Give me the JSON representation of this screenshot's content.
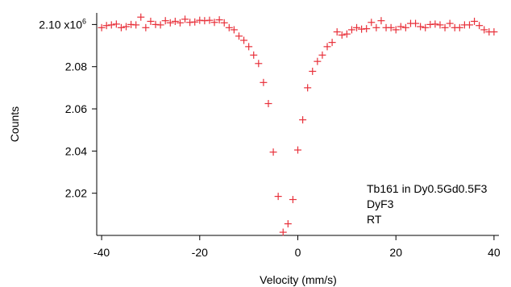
{
  "chart_data": {
    "type": "scatter",
    "title": "",
    "xlabel": "Velocity (mm/s)",
    "ylabel": "Counts",
    "xlim": [
      -41,
      41
    ],
    "ylim": [
      2.0,
      2.1055
    ],
    "x_ticks": [
      -40,
      -20,
      0,
      20,
      40
    ],
    "x_tick_labels": [
      "-40",
      "-20",
      "0",
      "20",
      "40"
    ],
    "y_ticks": [
      2.02,
      2.04,
      2.06,
      2.08,
      2.1
    ],
    "y_tick_labels": [
      "2.02",
      "2.04",
      "2.06",
      "2.08",
      "2.10 x10"
    ],
    "y_multiplier_exponent": "6",
    "grid": false,
    "marker": "+",
    "marker_color": "#e8303a",
    "annotations": [
      "Tb161 in Dy0.5Gd0.5F3",
      "DyF3",
      "RT"
    ],
    "series": [
      {
        "x": [
          -40.0,
          -39.0,
          -38.0,
          -37.0,
          -36.0,
          -35.0,
          -34.0,
          -33.0,
          -32.0,
          -31.0,
          -30.0,
          -29.0,
          -28.0,
          -27.0,
          -26.0,
          -25.0,
          -24.0,
          -23.0,
          -22.0,
          -21.0,
          -20.0,
          -19.0,
          -18.0,
          -17.0,
          -16.0,
          -15.0,
          -14.0,
          -13.0,
          -12.0,
          -11.0,
          -10.0,
          -9.0,
          -8.0,
          -7.0,
          -6.0,
          -5.0,
          -4.0,
          -3.0,
          -2.0,
          -1.0,
          0.0,
          1.0,
          2.0,
          3.0,
          4.0,
          5.0,
          6.0,
          7.0,
          8.0,
          9.0,
          10.0,
          11.0,
          12.0,
          13.0,
          14.0,
          15.0,
          16.0,
          17.0,
          18.0,
          19.0,
          20.0,
          21.0,
          22.0,
          23.0,
          24.0,
          25.0,
          26.0,
          27.0,
          28.0,
          29.0,
          30.0,
          31.0,
          32.0,
          33.0,
          34.0,
          35.0,
          36.0,
          37.0,
          38.0,
          39.0,
          40.0
        ],
        "values": [
          2.0985,
          2.0995,
          2.0998,
          2.1002,
          2.0985,
          2.099,
          2.1,
          2.0998,
          2.1035,
          2.0985,
          2.1015,
          2.1,
          2.0998,
          2.1018,
          2.1008,
          2.1015,
          2.1008,
          2.1025,
          2.101,
          2.1012,
          2.102,
          2.1018,
          2.102,
          2.101,
          2.1022,
          2.1008,
          2.0985,
          2.0975,
          2.0945,
          2.0925,
          2.0895,
          2.0855,
          2.0815,
          2.0725,
          2.0625,
          2.0395,
          2.0185,
          2.0015,
          2.0055,
          2.017,
          2.0405,
          2.0548,
          2.07,
          2.0778,
          2.0825,
          2.0855,
          2.0895,
          2.0915,
          2.0965,
          2.095,
          2.0955,
          2.0975,
          2.0985,
          2.0978,
          2.098,
          2.101,
          2.0985,
          2.1018,
          2.0985,
          2.0985,
          2.0975,
          2.099,
          2.0985,
          2.1005,
          2.1005,
          2.099,
          2.0985,
          2.1,
          2.1002,
          2.0998,
          2.0985,
          2.1005,
          2.0985,
          2.0985,
          2.0998,
          2.0998,
          2.1015,
          2.0995,
          2.0975,
          2.0965,
          2.0965
        ]
      }
    ]
  }
}
